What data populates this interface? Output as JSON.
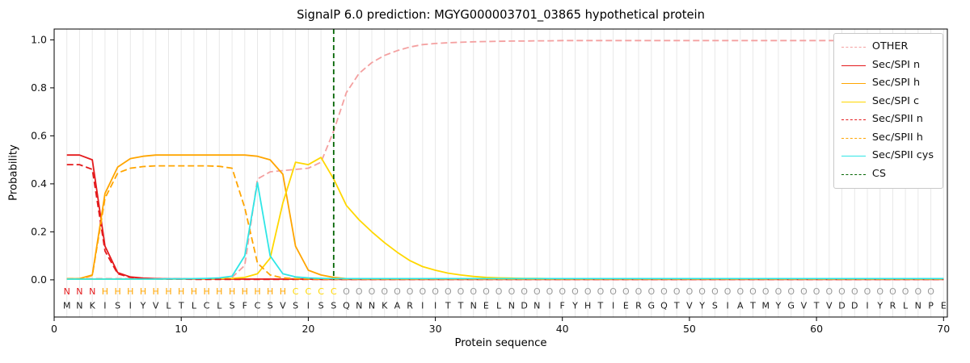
{
  "chart_data": {
    "type": "line",
    "title": "SignalP 6.0 prediction: MGYG000003701_03865 hypothetical protein",
    "xlabel": "Protein sequence",
    "ylabel": "Probability",
    "xlim": [
      0,
      70.3
    ],
    "ylim": [
      -0.155,
      1.045
    ],
    "xticks": [
      0,
      10,
      20,
      30,
      40,
      50,
      60,
      70
    ],
    "yticks": [
      "0.0",
      "0.2",
      "0.4",
      "0.6",
      "0.8",
      "1.0"
    ],
    "grid": "vertical line at every residue, light gray",
    "legend_position": "upper right",
    "sequence": "MNKISIYVLTLCLSFCSVSISSQNNKARIITTNELNDNIFYHTIERGQTVYSIATMYGVTVDDIYRLNPE",
    "region_labels": "NNNHHHHHHHHHHHHHHHCCCCOOOOOOOOOOOOOOOOOOOOOOOOOOOOOOOOOOOOOOOOOOOOOOO",
    "label_colors": {
      "N": "#e41a1c",
      "H": "#ffa500",
      "C": "#ffd700",
      "O": "#999999"
    },
    "sequence_color": "#1a1a1a",
    "series": [
      {
        "name": "OTHER",
        "color": "#f4a0a0",
        "dash": true,
        "values": [
          0.005,
          0.005,
          0.005,
          0.005,
          0.005,
          0.005,
          0.005,
          0.005,
          0.005,
          0.005,
          0.005,
          0.005,
          0.006,
          0.01,
          0.06,
          0.42,
          0.45,
          0.455,
          0.46,
          0.465,
          0.49,
          0.62,
          0.78,
          0.86,
          0.905,
          0.935,
          0.955,
          0.97,
          0.98,
          0.985,
          0.988,
          0.99,
          0.992,
          0.993,
          0.994,
          0.995,
          0.995,
          0.996,
          0.996,
          0.997,
          0.997,
          0.997,
          0.997,
          0.997,
          0.997,
          0.997,
          0.997,
          0.997,
          0.997,
          0.997,
          0.997,
          0.997,
          0.997,
          0.997,
          0.997,
          0.997,
          0.997,
          0.997,
          0.997,
          0.997,
          0.997,
          0.997,
          0.997,
          0.997,
          0.997,
          0.997,
          0.997,
          0.997,
          0.997,
          0.997
        ]
      },
      {
        "name": "Sec/SPI n",
        "color": "#e41a1c",
        "dash": false,
        "values": [
          0.52,
          0.52,
          0.5,
          0.14,
          0.03,
          0.012,
          0.007,
          0.005,
          0.004,
          0.004,
          0.003,
          0.003,
          0.003,
          0.003,
          0.003,
          0.003,
          0.003,
          0.003,
          0.003,
          0.003,
          0.002,
          0.002,
          0.002,
          0.002,
          0.002,
          0.002,
          0.002,
          0.002,
          0.002,
          0.002,
          0.002,
          0.002,
          0.002,
          0.002,
          0.002,
          0.002,
          0.002,
          0.002,
          0.002,
          0.002,
          0.002,
          0.002,
          0.002,
          0.002,
          0.002,
          0.002,
          0.002,
          0.002,
          0.002,
          0.002,
          0.002,
          0.002,
          0.002,
          0.002,
          0.002,
          0.002,
          0.002,
          0.002,
          0.002,
          0.002,
          0.002,
          0.002,
          0.002,
          0.002,
          0.002,
          0.002,
          0.002,
          0.002,
          0.002,
          0.002
        ]
      },
      {
        "name": "Sec/SPI h",
        "color": "#ffa500",
        "dash": false,
        "values": [
          0.004,
          0.005,
          0.02,
          0.36,
          0.47,
          0.505,
          0.515,
          0.52,
          0.52,
          0.52,
          0.52,
          0.52,
          0.52,
          0.52,
          0.52,
          0.515,
          0.5,
          0.44,
          0.14,
          0.04,
          0.02,
          0.01,
          0.005,
          0.004,
          0.003,
          0.003,
          0.003,
          0.003,
          0.003,
          0.003,
          0.003,
          0.003,
          0.003,
          0.003,
          0.003,
          0.003,
          0.003,
          0.003,
          0.003,
          0.003,
          0.003,
          0.003,
          0.003,
          0.003,
          0.003,
          0.003,
          0.003,
          0.003,
          0.003,
          0.003,
          0.003,
          0.003,
          0.003,
          0.003,
          0.003,
          0.003,
          0.003,
          0.003,
          0.003,
          0.003,
          0.003,
          0.003,
          0.003,
          0.003,
          0.003,
          0.003,
          0.003,
          0.003,
          0.003,
          0.003
        ]
      },
      {
        "name": "Sec/SPI c",
        "color": "#ffd700",
        "dash": false,
        "values": [
          0.003,
          0.003,
          0.003,
          0.003,
          0.003,
          0.003,
          0.003,
          0.003,
          0.003,
          0.003,
          0.004,
          0.004,
          0.005,
          0.006,
          0.01,
          0.025,
          0.09,
          0.32,
          0.49,
          0.48,
          0.51,
          0.42,
          0.31,
          0.25,
          0.2,
          0.155,
          0.115,
          0.08,
          0.055,
          0.04,
          0.028,
          0.02,
          0.014,
          0.01,
          0.008,
          0.007,
          0.006,
          0.006,
          0.005,
          0.005,
          0.005,
          0.005,
          0.005,
          0.005,
          0.005,
          0.005,
          0.005,
          0.005,
          0.005,
          0.005,
          0.005,
          0.005,
          0.005,
          0.005,
          0.005,
          0.005,
          0.005,
          0.005,
          0.005,
          0.005,
          0.005,
          0.005,
          0.005,
          0.005,
          0.005,
          0.005,
          0.005,
          0.005,
          0.005,
          0.005
        ]
      },
      {
        "name": "Sec/SPII n",
        "color": "#e41a1c",
        "dash": true,
        "values": [
          0.48,
          0.48,
          0.46,
          0.12,
          0.025,
          0.01,
          0.006,
          0.004,
          0.003,
          0.003,
          0.002,
          0.002,
          0.002,
          0.002,
          0.002,
          0.002,
          0.002,
          0.002,
          0.002,
          0.002,
          0.002,
          0.002,
          0.002,
          0.002,
          0.002,
          0.002,
          0.002,
          0.002,
          0.002,
          0.002,
          0.002,
          0.002,
          0.002,
          0.002,
          0.002,
          0.002,
          0.002,
          0.002,
          0.002,
          0.002,
          0.002,
          0.002,
          0.002,
          0.002,
          0.002,
          0.002,
          0.002,
          0.002,
          0.002,
          0.002,
          0.002,
          0.002,
          0.002,
          0.002,
          0.002,
          0.002,
          0.002,
          0.002,
          0.002,
          0.002,
          0.002,
          0.002,
          0.002,
          0.002,
          0.002,
          0.002,
          0.002,
          0.002,
          0.002,
          0.002
        ]
      },
      {
        "name": "Sec/SPII h",
        "color": "#ffa500",
        "dash": true,
        "values": [
          0.004,
          0.004,
          0.018,
          0.34,
          0.445,
          0.465,
          0.472,
          0.475,
          0.475,
          0.475,
          0.475,
          0.475,
          0.473,
          0.465,
          0.3,
          0.07,
          0.02,
          0.008,
          0.005,
          0.004,
          0.003,
          0.003,
          0.003,
          0.003,
          0.003,
          0.003,
          0.003,
          0.003,
          0.003,
          0.003,
          0.003,
          0.003,
          0.003,
          0.003,
          0.003,
          0.003,
          0.003,
          0.003,
          0.003,
          0.003,
          0.003,
          0.003,
          0.003,
          0.003,
          0.003,
          0.003,
          0.003,
          0.003,
          0.003,
          0.003,
          0.003,
          0.003,
          0.003,
          0.003,
          0.003,
          0.003,
          0.003,
          0.003,
          0.003,
          0.003,
          0.003,
          0.003,
          0.003,
          0.003,
          0.003,
          0.003,
          0.003,
          0.003,
          0.003,
          0.003
        ]
      },
      {
        "name": "Sec/SPII cys",
        "color": "#2fe6e6",
        "dash": false,
        "values": [
          0.003,
          0.003,
          0.003,
          0.003,
          0.003,
          0.003,
          0.003,
          0.003,
          0.004,
          0.004,
          0.005,
          0.006,
          0.008,
          0.015,
          0.1,
          0.405,
          0.1,
          0.025,
          0.012,
          0.008,
          0.006,
          0.005,
          0.005,
          0.005,
          0.005,
          0.005,
          0.005,
          0.005,
          0.005,
          0.005,
          0.005,
          0.005,
          0.005,
          0.005,
          0.005,
          0.005,
          0.005,
          0.005,
          0.005,
          0.005,
          0.005,
          0.005,
          0.005,
          0.005,
          0.005,
          0.005,
          0.005,
          0.005,
          0.005,
          0.005,
          0.005,
          0.005,
          0.005,
          0.005,
          0.005,
          0.005,
          0.005,
          0.005,
          0.005,
          0.005,
          0.005,
          0.005,
          0.005,
          0.005,
          0.005,
          0.005,
          0.005,
          0.005,
          0.005,
          0.005
        ]
      }
    ],
    "cs": {
      "name": "CS",
      "color": "#006400",
      "dash": true,
      "x": 22
    }
  }
}
